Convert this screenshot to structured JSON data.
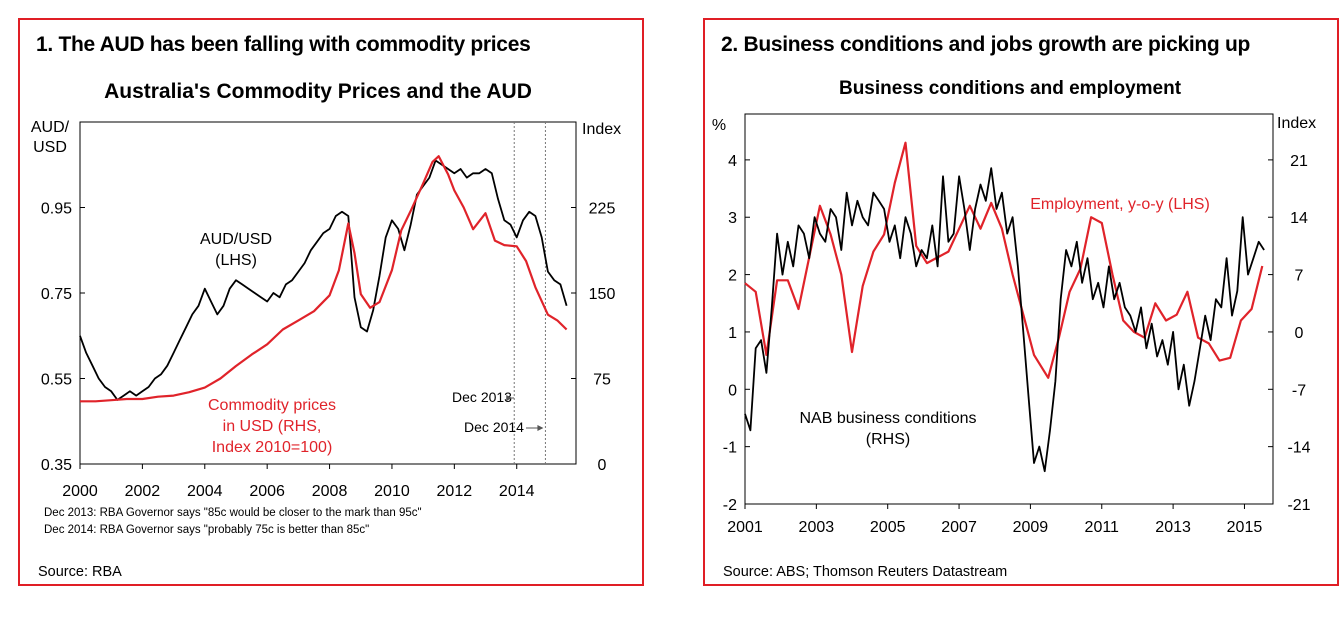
{
  "panels": [
    {
      "heading": "1. The AUD has been falling with commodity prices",
      "source": "Source: RBA",
      "footnotes": [
        "Dec 2013: RBA Governor says \"85c would be closer to the mark than 95c\"",
        "Dec 2014: RBA Governor says \"probably 75c is better than 85c\""
      ]
    },
    {
      "heading": "2. Business conditions and jobs growth are picking up",
      "source": "Source: ABS; Thomson Reuters Datastream"
    }
  ],
  "colors": {
    "frame": "#e01e25",
    "red_series": "#e0232a",
    "black_series": "#000000",
    "annotation": "#777777"
  },
  "chart_data": [
    {
      "type": "line",
      "title": "Australia's Commodity Prices and the AUD",
      "left_axis_label": "AUD/\nUSD",
      "right_axis_label": "Index",
      "xlim": [
        2000,
        2015.9
      ],
      "x_ticks": [
        2000,
        2002,
        2004,
        2006,
        2008,
        2010,
        2012,
        2014
      ],
      "left_ylim": [
        0.35,
        1.15
      ],
      "left_ticks": [
        "0.35",
        "0.55",
        "0.75",
        "0.95"
      ],
      "right_ylim": [
        0,
        300
      ],
      "right_ticks": [
        "0",
        "75",
        "150",
        "225"
      ],
      "grid": false,
      "vertical_markers": [
        {
          "x": 2013.92,
          "label": "Dec 2013"
        },
        {
          "x": 2014.92,
          "label": "Dec 2014"
        }
      ],
      "series": [
        {
          "name": "AUD/USD (LHS)",
          "label_lines": [
            "AUD/USD",
            "(LHS)"
          ],
          "axis": "left",
          "color": "#000000",
          "x": [
            2000.0,
            2000.2,
            2000.4,
            2000.6,
            2000.8,
            2001.0,
            2001.2,
            2001.4,
            2001.6,
            2001.8,
            2002.0,
            2002.2,
            2002.4,
            2002.6,
            2002.8,
            2003.0,
            2003.2,
            2003.4,
            2003.6,
            2003.8,
            2004.0,
            2004.2,
            2004.4,
            2004.6,
            2004.8,
            2005.0,
            2005.2,
            2005.4,
            2005.6,
            2005.8,
            2006.0,
            2006.2,
            2006.4,
            2006.6,
            2006.8,
            2007.0,
            2007.2,
            2007.4,
            2007.6,
            2007.8,
            2008.0,
            2008.2,
            2008.4,
            2008.6,
            2008.8,
            2009.0,
            2009.2,
            2009.4,
            2009.6,
            2009.8,
            2010.0,
            2010.2,
            2010.4,
            2010.6,
            2010.8,
            2011.0,
            2011.2,
            2011.4,
            2011.6,
            2011.8,
            2012.0,
            2012.2,
            2012.4,
            2012.6,
            2012.8,
            2013.0,
            2013.2,
            2013.4,
            2013.6,
            2013.8,
            2014.0,
            2014.2,
            2014.4,
            2014.6,
            2014.8,
            2015.0,
            2015.2,
            2015.4,
            2015.6
          ],
          "y": [
            0.65,
            0.61,
            0.58,
            0.55,
            0.53,
            0.52,
            0.5,
            0.51,
            0.52,
            0.51,
            0.52,
            0.53,
            0.55,
            0.56,
            0.58,
            0.61,
            0.64,
            0.67,
            0.7,
            0.72,
            0.76,
            0.73,
            0.7,
            0.72,
            0.76,
            0.78,
            0.77,
            0.76,
            0.75,
            0.74,
            0.73,
            0.75,
            0.74,
            0.77,
            0.78,
            0.8,
            0.82,
            0.85,
            0.87,
            0.89,
            0.9,
            0.93,
            0.94,
            0.93,
            0.74,
            0.67,
            0.66,
            0.71,
            0.79,
            0.88,
            0.92,
            0.9,
            0.85,
            0.91,
            0.98,
            1.0,
            1.02,
            1.06,
            1.05,
            1.04,
            1.03,
            1.04,
            1.02,
            1.03,
            1.03,
            1.04,
            1.03,
            0.97,
            0.92,
            0.91,
            0.88,
            0.92,
            0.94,
            0.93,
            0.88,
            0.8,
            0.78,
            0.77,
            0.72
          ]
        },
        {
          "name": "Commodity prices in USD (RHS, Index 2010=100)",
          "label_lines": [
            "Commodity prices",
            "in USD (RHS,",
            "Index 2010=100)"
          ],
          "axis": "right",
          "color": "#e0232a",
          "x": [
            2000.0,
            2000.5,
            2001.0,
            2001.5,
            2002.0,
            2002.5,
            2003.0,
            2003.5,
            2004.0,
            2004.5,
            2005.0,
            2005.5,
            2006.0,
            2006.5,
            2007.0,
            2007.5,
            2008.0,
            2008.3,
            2008.6,
            2008.8,
            2009.0,
            2009.3,
            2009.6,
            2010.0,
            2010.3,
            2010.6,
            2011.0,
            2011.3,
            2011.5,
            2011.8,
            2012.0,
            2012.3,
            2012.6,
            2013.0,
            2013.3,
            2013.6,
            2014.0,
            2014.3,
            2014.6,
            2015.0,
            2015.3,
            2015.6
          ],
          "y": [
            55,
            55,
            56,
            57,
            57,
            59,
            60,
            63,
            67,
            75,
            86,
            96,
            105,
            118,
            126,
            134,
            148,
            170,
            211,
            185,
            149,
            137,
            142,
            170,
            205,
            222,
            246,
            265,
            270,
            254,
            240,
            225,
            206,
            220,
            196,
            192,
            191,
            178,
            155,
            131,
            126,
            118
          ]
        }
      ]
    },
    {
      "type": "line",
      "title": "Business conditions and employment",
      "left_axis_label": "%",
      "right_axis_label": "Index",
      "xlim": [
        2001,
        2015.8
      ],
      "x_ticks": [
        2001,
        2003,
        2005,
        2007,
        2009,
        2011,
        2013,
        2015
      ],
      "left_ylim": [
        -2,
        4.8
      ],
      "left_ticks": [
        "-2",
        "-1",
        "0",
        "1",
        "2",
        "3",
        "4"
      ],
      "right_ylim": [
        -21,
        26.6
      ],
      "right_ticks": [
        "-21",
        "-14",
        "-7",
        "0",
        "7",
        "14",
        "21"
      ],
      "grid": false,
      "series": [
        {
          "name": "Employment, y-o-y (LHS)",
          "label_lines": [
            "Employment, y-o-y (LHS)"
          ],
          "axis": "left",
          "color": "#e0232a",
          "x": [
            2001.0,
            2001.3,
            2001.6,
            2001.9,
            2002.2,
            2002.5,
            2002.8,
            2003.1,
            2003.4,
            2003.7,
            2004.0,
            2004.3,
            2004.6,
            2004.9,
            2005.2,
            2005.5,
            2005.8,
            2006.1,
            2006.4,
            2006.7,
            2007.0,
            2007.3,
            2007.6,
            2007.9,
            2008.2,
            2008.5,
            2008.8,
            2009.1,
            2009.5,
            2009.8,
            2010.1,
            2010.4,
            2010.7,
            2011.0,
            2011.3,
            2011.6,
            2011.9,
            2012.2,
            2012.5,
            2012.8,
            2013.1,
            2013.4,
            2013.7,
            2014.0,
            2014.3,
            2014.6,
            2014.9,
            2015.2,
            2015.5
          ],
          "y": [
            1.85,
            1.7,
            0.6,
            1.9,
            1.9,
            1.4,
            2.3,
            3.2,
            2.7,
            2.0,
            0.65,
            1.8,
            2.4,
            2.7,
            3.6,
            4.3,
            2.5,
            2.2,
            2.3,
            2.4,
            2.8,
            3.2,
            2.8,
            3.25,
            2.8,
            2.0,
            1.3,
            0.6,
            0.2,
            0.9,
            1.7,
            2.1,
            3.0,
            2.9,
            2.0,
            1.2,
            1.0,
            0.9,
            1.5,
            1.2,
            1.3,
            1.7,
            0.9,
            0.8,
            0.5,
            0.55,
            1.2,
            1.4,
            2.15
          ]
        },
        {
          "name": "NAB business conditions (RHS)",
          "label_lines": [
            "NAB business conditions",
            "(RHS)"
          ],
          "axis": "right",
          "color": "#000000",
          "x": [
            2001.0,
            2001.15,
            2001.3,
            2001.45,
            2001.6,
            2001.75,
            2001.9,
            2002.05,
            2002.2,
            2002.35,
            2002.5,
            2002.65,
            2002.8,
            2002.95,
            2003.1,
            2003.25,
            2003.4,
            2003.55,
            2003.7,
            2003.85,
            2004.0,
            2004.15,
            2004.3,
            2004.45,
            2004.6,
            2004.75,
            2004.9,
            2005.05,
            2005.2,
            2005.35,
            2005.5,
            2005.65,
            2005.8,
            2005.95,
            2006.1,
            2006.25,
            2006.4,
            2006.55,
            2006.7,
            2006.85,
            2007.0,
            2007.15,
            2007.3,
            2007.45,
            2007.6,
            2007.75,
            2007.9,
            2008.05,
            2008.2,
            2008.35,
            2008.5,
            2008.65,
            2008.8,
            2008.95,
            2009.1,
            2009.25,
            2009.4,
            2009.55,
            2009.7,
            2009.85,
            2010.0,
            2010.15,
            2010.3,
            2010.45,
            2010.6,
            2010.75,
            2010.9,
            2011.05,
            2011.2,
            2011.35,
            2011.5,
            2011.65,
            2011.8,
            2011.95,
            2012.1,
            2012.25,
            2012.4,
            2012.55,
            2012.7,
            2012.85,
            2013.0,
            2013.15,
            2013.3,
            2013.45,
            2013.6,
            2013.75,
            2013.9,
            2014.05,
            2014.2,
            2014.35,
            2014.5,
            2014.65,
            2014.8,
            2014.95,
            2015.1,
            2015.25,
            2015.4,
            2015.55
          ],
          "y": [
            -10,
            -12,
            -2,
            -1,
            -5,
            3,
            12,
            7,
            11,
            8,
            13,
            12,
            9,
            14,
            12,
            11,
            15,
            14,
            10,
            17,
            13,
            16,
            14,
            13,
            17,
            16,
            15,
            11,
            13,
            9,
            14,
            12,
            8,
            10,
            9,
            13,
            8,
            19,
            11,
            12,
            19,
            15,
            10,
            15,
            18,
            16,
            20,
            15,
            17,
            12,
            14,
            8,
            0,
            -8,
            -16,
            -14,
            -17,
            -12,
            -6,
            4,
            10,
            8,
            11,
            6,
            9,
            4,
            6,
            3,
            8,
            4,
            6,
            3,
            2,
            0,
            3,
            -2,
            1,
            -3,
            -1,
            -4,
            0,
            -7,
            -4,
            -9,
            -6,
            -2,
            2,
            -1,
            4,
            3,
            9,
            2,
            5,
            14,
            7,
            9,
            11,
            10
          ]
        }
      ]
    }
  ]
}
